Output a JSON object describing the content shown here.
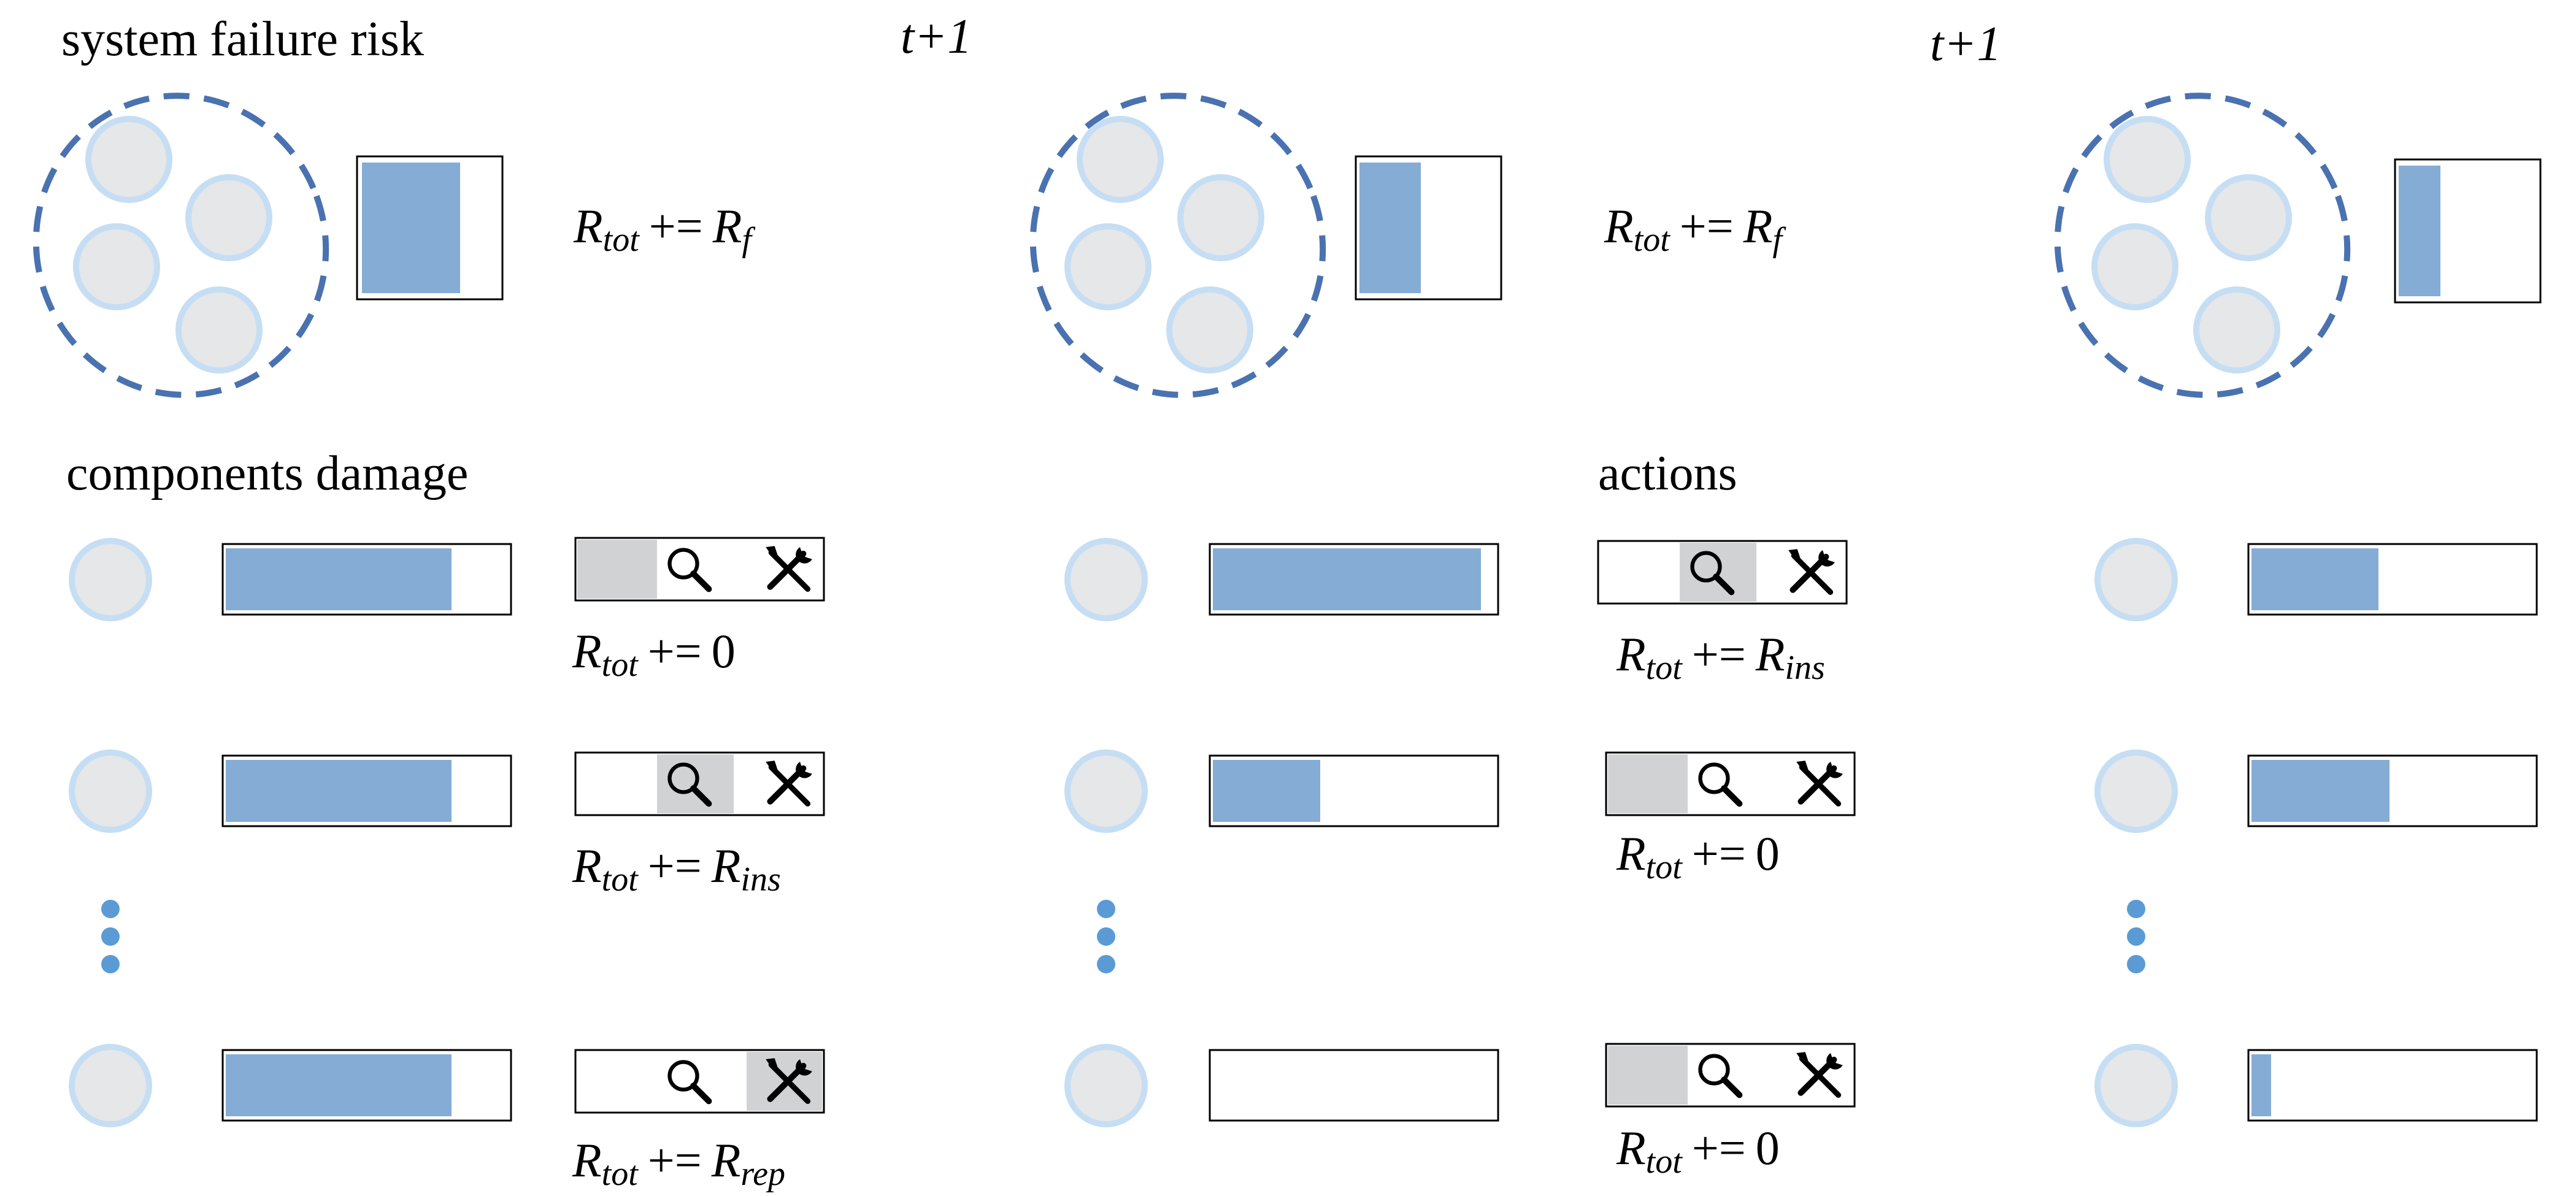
{
  "labels": {
    "system_failure_risk": "system failure risk",
    "components_damage": "components damage",
    "actions": "actions",
    "time_step_1": "t+1",
    "time_step_2": "t+1"
  },
  "equation_parts": {
    "R": "R",
    "tot": "tot",
    "op": "+=",
    "zero": "0",
    "f": "f",
    "ins": "ins",
    "rep": "rep"
  },
  "stages": [
    {
      "system_risk_level": 0.75,
      "system_cost": "Rf",
      "components": [
        {
          "damage": 0.8,
          "action": "none",
          "cost": "0"
        },
        {
          "damage": 0.8,
          "action": "inspect",
          "cost": "Rins"
        },
        {
          "damage": 0.8,
          "action": "repair",
          "cost": "Rrep"
        }
      ]
    },
    {
      "system_risk_level": 0.47,
      "system_cost": "Rf",
      "components": [
        {
          "damage": 0.95,
          "action": "inspect",
          "cost": "Rins"
        },
        {
          "damage": 0.38,
          "action": "none",
          "cost": "0"
        },
        {
          "damage": 0.0,
          "action": "none",
          "cost": "0"
        }
      ]
    },
    {
      "system_risk_level": 0.32,
      "components": [
        {
          "damage": 0.45
        },
        {
          "damage": 0.49
        },
        {
          "damage": 0.07
        }
      ]
    }
  ],
  "colors": {
    "fill": "#85acd5",
    "circle_fill": "#e6e7e9",
    "circle_stroke": "#c6def3",
    "dashed": "#4a72b0",
    "dots": "#5b9bd5",
    "selected": "#d1d2d4"
  },
  "icons": {
    "inspect": "magnifier-icon",
    "repair": "wrench-screwdriver-icon"
  }
}
